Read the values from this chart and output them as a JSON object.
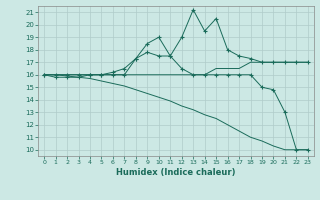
{
  "xlabel": "Humidex (Indice chaleur)",
  "background_color": "#cce8e4",
  "grid_color": "#b0ccca",
  "line_color": "#1a6b5a",
  "xlim": [
    -0.5,
    23.5
  ],
  "ylim": [
    9.5,
    21.5
  ],
  "xticks": [
    0,
    1,
    2,
    3,
    4,
    5,
    6,
    7,
    8,
    9,
    10,
    11,
    12,
    13,
    14,
    15,
    16,
    17,
    18,
    19,
    20,
    21,
    22,
    23
  ],
  "yticks": [
    10,
    11,
    12,
    13,
    14,
    15,
    16,
    17,
    18,
    19,
    20,
    21
  ],
  "lines": [
    {
      "x": [
        0,
        1,
        2,
        3,
        4,
        5,
        6,
        7,
        8,
        9,
        10,
        11,
        12,
        13,
        14,
        15,
        16,
        17,
        18,
        19,
        20,
        21,
        22,
        23
      ],
      "y": [
        16,
        16,
        16,
        16,
        16,
        16,
        16,
        16,
        16,
        16,
        16,
        16,
        16,
        16,
        16,
        16.5,
        16.5,
        16.5,
        17,
        17,
        17,
        17,
        17,
        17
      ],
      "marker": false
    },
    {
      "x": [
        0,
        1,
        2,
        3,
        4,
        5,
        6,
        7,
        8,
        9,
        10,
        11,
        12,
        13,
        14,
        15,
        16,
        17,
        18,
        19,
        20,
        21,
        22,
        23
      ],
      "y": [
        16,
        16,
        16,
        16,
        16,
        16,
        16,
        16,
        17.3,
        18.5,
        19,
        17.5,
        19,
        21.2,
        19.5,
        20.5,
        18,
        17.5,
        17.3,
        17,
        17,
        17,
        17,
        17
      ],
      "marker": true
    },
    {
      "x": [
        0,
        1,
        2,
        3,
        4,
        5,
        6,
        7,
        8,
        9,
        10,
        11,
        12,
        13,
        14,
        15,
        16,
        17,
        18,
        19,
        20,
        21,
        22,
        23
      ],
      "y": [
        16,
        15.8,
        15.8,
        15.8,
        16,
        16,
        16.2,
        16.5,
        17.3,
        17.8,
        17.5,
        17.5,
        16.5,
        16,
        16,
        16,
        16,
        16,
        16,
        15,
        14.8,
        13,
        10,
        10
      ],
      "marker": true
    },
    {
      "x": [
        0,
        1,
        2,
        3,
        4,
        5,
        6,
        7,
        8,
        9,
        10,
        11,
        12,
        13,
        14,
        15,
        16,
        17,
        18,
        19,
        20,
        21,
        22,
        23
      ],
      "y": [
        16,
        16,
        15.9,
        15.8,
        15.7,
        15.5,
        15.3,
        15.1,
        14.8,
        14.5,
        14.2,
        13.9,
        13.5,
        13.2,
        12.8,
        12.5,
        12,
        11.5,
        11,
        10.7,
        10.3,
        10,
        10,
        10
      ],
      "marker": false
    }
  ]
}
